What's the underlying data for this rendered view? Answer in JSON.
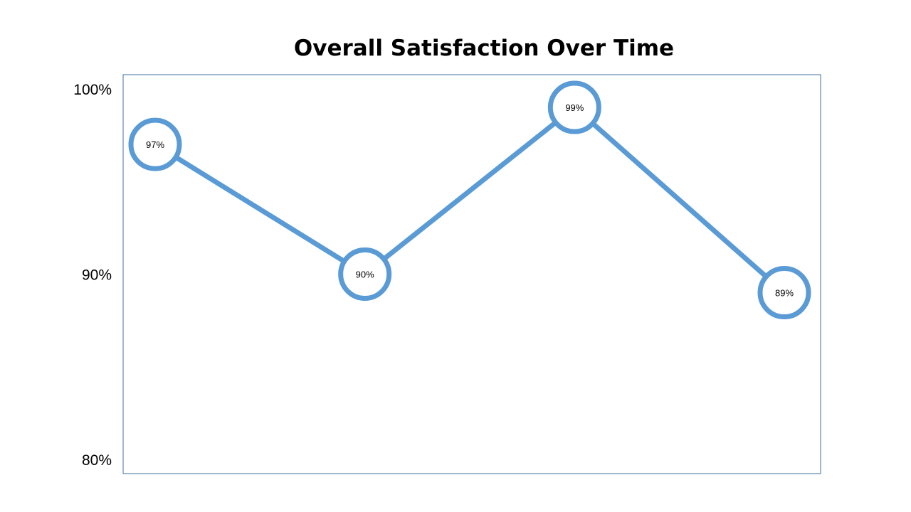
{
  "chart_data": {
    "type": "line",
    "title": "Overall Satisfaction Over Time",
    "xlabel": "",
    "ylabel": "",
    "categories": [
      "",
      "",
      "",
      ""
    ],
    "series": [
      {
        "values": [
          97,
          90,
          99,
          89
        ],
        "labels": [
          "97%",
          "90%",
          "99%",
          "89%"
        ],
        "color": "#5B9BD5"
      }
    ],
    "ylim": [
      80,
      100
    ],
    "y_ticks": [
      {
        "value": 100,
        "label": "100%"
      },
      {
        "value": 90,
        "label": "90%"
      },
      {
        "value": 80,
        "label": "80%"
      }
    ],
    "grid": false,
    "legend": "none",
    "plot_border_color": "#41719C"
  }
}
